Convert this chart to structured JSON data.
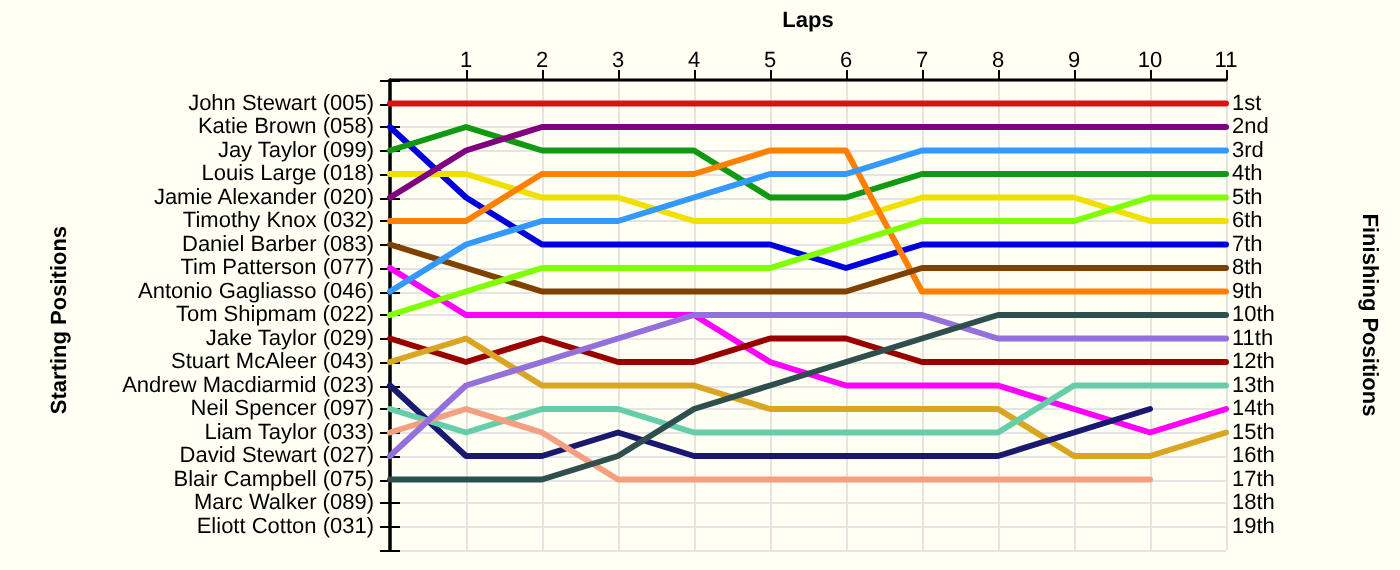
{
  "chart_data": {
    "type": "line",
    "xlabel": "Laps",
    "ylabel": "Finishing Positions",
    "x": [
      0,
      1,
      2,
      3,
      4,
      5,
      6,
      7,
      8,
      9,
      10,
      11
    ],
    "xlim": [
      0,
      11
    ],
    "xticks": [
      1,
      2,
      3,
      4,
      5,
      6,
      7,
      8,
      9,
      10,
      11
    ],
    "ylim": [
      20,
      0
    ],
    "yticks": [
      {
        "value": 0,
        "label": null
      },
      {
        "value": 1,
        "label": "1st"
      },
      {
        "value": 2,
        "label": "2nd"
      },
      {
        "value": 3,
        "label": "3rd"
      },
      {
        "value": 4,
        "label": "4th"
      },
      {
        "value": 5,
        "label": "5th"
      },
      {
        "value": 6,
        "label": "6th"
      },
      {
        "value": 7,
        "label": "7th"
      },
      {
        "value": 8,
        "label": "8th"
      },
      {
        "value": 9,
        "label": "9th"
      },
      {
        "value": 10,
        "label": "10th"
      },
      {
        "value": 11,
        "label": "11th"
      },
      {
        "value": 12,
        "label": "12th"
      },
      {
        "value": 13,
        "label": "13th"
      },
      {
        "value": 14,
        "label": "14th"
      },
      {
        "value": 15,
        "label": "15th"
      },
      {
        "value": 16,
        "label": "16th"
      },
      {
        "value": 17,
        "label": "17th"
      },
      {
        "value": 18,
        "label": "18th"
      },
      {
        "value": 19,
        "label": "19th"
      },
      {
        "value": 20,
        "label": null
      }
    ],
    "annotations": [
      "Starting Positions",
      "John Stewart (005)",
      "Katie Brown (058)",
      "Jay Taylor (099)",
      "Louis Large (018)",
      "Jamie Alexander (020)",
      "Timothy Knox (032)",
      "Daniel Barber (083)",
      "Tim Patterson (077)",
      "Antonio Gagliasso (046)",
      "Tom Shipmam (022)",
      "Jake Taylor (029)",
      "Stuart McAleer (043)",
      "Andrew Macdiarmid (023)",
      "Neil Spencer (097)",
      "Liam Taylor (033)",
      "David Stewart (027)",
      "Blair Campbell (075)",
      "Marc Walker (089)",
      "Eliott Cotton (031)"
    ],
    "grid": true,
    "legend": false,
    "marker": "none",
    "line_style": "solid",
    "series": [
      {
        "color": "#dd1111",
        "values": [
          1,
          1,
          1,
          1,
          1,
          1,
          1,
          1,
          1,
          1,
          1,
          1
        ]
      },
      {
        "color": "#0000dd",
        "values": [
          2,
          5,
          7,
          7,
          7,
          7,
          8,
          7,
          7,
          7,
          7,
          7
        ]
      },
      {
        "color": "#119911",
        "values": [
          3,
          2,
          3,
          3,
          3,
          5,
          5,
          4,
          4,
          4,
          4,
          4
        ]
      },
      {
        "color": "#f0e000",
        "values": [
          4,
          4,
          5,
          5,
          6,
          6,
          6,
          5,
          5,
          5,
          6,
          6
        ]
      },
      {
        "color": "#800080",
        "values": [
          5,
          3,
          2,
          2,
          2,
          2,
          2,
          2,
          2,
          2,
          2,
          2
        ]
      },
      {
        "color": "#ff8000",
        "values": [
          6,
          6,
          4,
          4,
          4,
          3,
          3,
          9,
          9,
          9,
          9,
          9
        ]
      },
      {
        "color": "#804000",
        "values": [
          7,
          8,
          9,
          9,
          9,
          9,
          9,
          8,
          8,
          8,
          8,
          8
        ]
      },
      {
        "color": "#ff00ff",
        "values": [
          8,
          10,
          10,
          10,
          10,
          12,
          13,
          13,
          13,
          14,
          15,
          14
        ]
      },
      {
        "color": "#3399ff",
        "values": [
          9,
          7,
          6,
          6,
          5,
          4,
          4,
          3,
          3,
          3,
          3,
          3
        ]
      },
      {
        "color": "#80ff00",
        "values": [
          10,
          9,
          8,
          8,
          8,
          8,
          7,
          6,
          6,
          6,
          5,
          5
        ]
      },
      {
        "color": "#990000",
        "values": [
          11,
          12,
          11,
          12,
          12,
          11,
          11,
          12,
          12,
          12,
          12,
          12
        ]
      },
      {
        "color": "#daa520",
        "values": [
          12,
          11,
          13,
          13,
          13,
          14,
          14,
          14,
          14,
          16,
          16,
          15
        ]
      },
      {
        "color": "#191970",
        "values": [
          13,
          16,
          16,
          15,
          16,
          16,
          16,
          16,
          16,
          15,
          14,
          null
        ]
      },
      {
        "color": "#66cdaa",
        "values": [
          14,
          15,
          14,
          14,
          15,
          15,
          15,
          15,
          15,
          13,
          13,
          13
        ]
      },
      {
        "color": "#f4a080",
        "values": [
          15,
          14,
          15,
          17,
          17,
          17,
          17,
          17,
          17,
          17,
          17,
          null
        ]
      },
      {
        "color": "#9370db",
        "values": [
          16,
          13,
          12,
          11,
          10,
          10,
          10,
          10,
          11,
          11,
          11,
          11
        ]
      },
      {
        "color": "#2f4f4f",
        "values": [
          17,
          17,
          17,
          16,
          14,
          13,
          12,
          11,
          10,
          10,
          10,
          10
        ]
      }
    ]
  }
}
